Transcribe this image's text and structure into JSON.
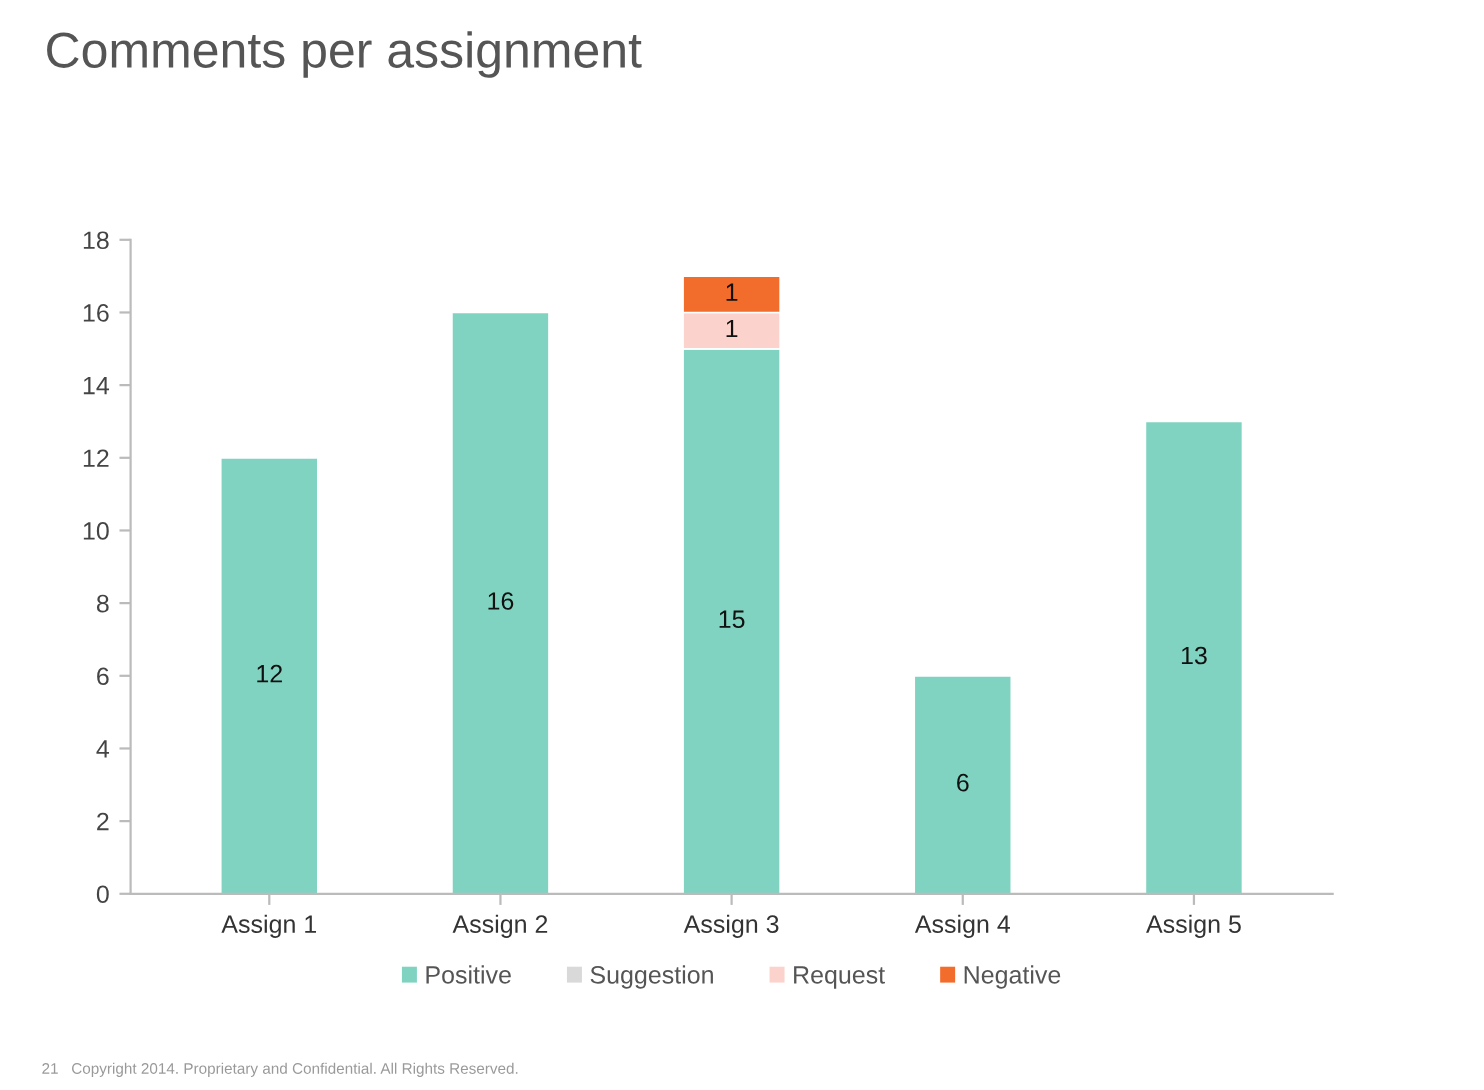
{
  "chart_data": {
    "type": "bar",
    "title": "Comments per assignment",
    "stacked": true,
    "categories": [
      "Assign 1",
      "Assign 2",
      "Assign 3",
      "Assign 4",
      "Assign 5"
    ],
    "series": [
      {
        "name": "Positive",
        "color": "#7fd3c0",
        "values": [
          12,
          16,
          15,
          6,
          13
        ]
      },
      {
        "name": "Suggestion",
        "color": "#d9d9d9",
        "values": [
          null,
          null,
          null,
          null,
          null
        ]
      },
      {
        "name": "Request",
        "color": "#fcd3cc",
        "values": [
          null,
          null,
          1,
          null,
          null
        ]
      },
      {
        "name": "Negative",
        "color": "#f26d2b",
        "values": [
          null,
          null,
          1,
          null,
          null
        ]
      }
    ],
    "ylim": [
      0,
      18
    ],
    "yticks": [
      0,
      2,
      4,
      6,
      8,
      10,
      12,
      14,
      16,
      18
    ],
    "grid": false,
    "legend": "bottom",
    "data_labels": true,
    "annotations": [
      "21",
      "Copyright 2014. Proprietary and Confidential. All Rights Reserved."
    ]
  }
}
